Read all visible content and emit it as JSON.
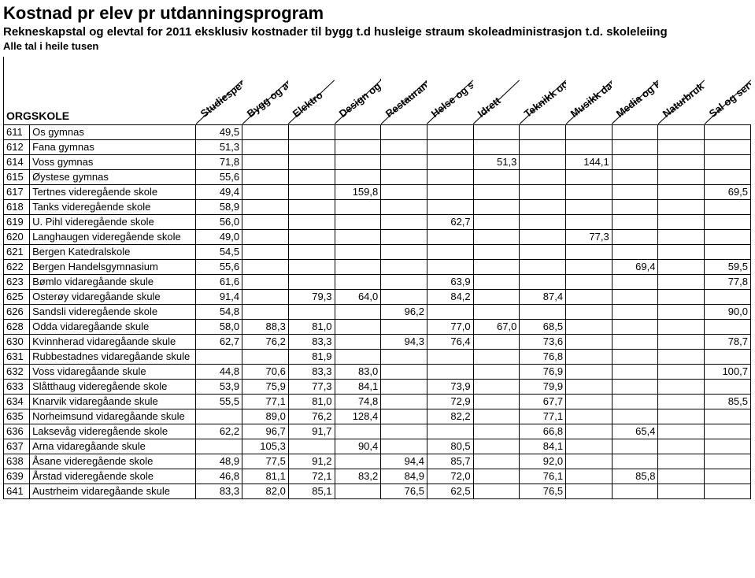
{
  "title": {
    "main": "Kostnad pr elev pr utdanningsprogram",
    "sub": "Rekneskapstal og elevtal for 2011 eksklusiv kostnader til bygg t.d husleige straum  skoleadministrasjon t.d. skoleleiing",
    "note": "Alle tal i heile tusen"
  },
  "columns": {
    "code_label": "ORG",
    "name_label": "SKOLE",
    "headers": [
      "Studiespes.",
      "Bygg og anlegg",
      "Elektro",
      "Design og handverk",
      "Restaurant og matfag",
      "Helse og sosial",
      "Idrett",
      "Teknikk og ind. prod.",
      "Musikk dans og drama",
      "Media og komm.",
      "Naturbruk",
      "Sal og service"
    ]
  },
  "rows": [
    {
      "code": "611",
      "name": "Os gymnas",
      "v": [
        "49,5",
        "",
        "",
        "",
        "",
        "",
        "",
        "",
        "",
        "",
        "",
        ""
      ]
    },
    {
      "code": "612",
      "name": "Fana gymnas",
      "v": [
        "51,3",
        "",
        "",
        "",
        "",
        "",
        "",
        "",
        "",
        "",
        "",
        ""
      ]
    },
    {
      "code": "614",
      "name": "Voss gymnas",
      "v": [
        "71,8",
        "",
        "",
        "",
        "",
        "",
        "51,3",
        "",
        "144,1",
        "",
        "",
        ""
      ]
    },
    {
      "code": "615",
      "name": "Øystese gymnas",
      "v": [
        "55,6",
        "",
        "",
        "",
        "",
        "",
        "",
        "",
        "",
        "",
        "",
        ""
      ]
    },
    {
      "code": "617",
      "name": "Tertnes videregående skole",
      "v": [
        "49,4",
        "",
        "",
        "159,8",
        "",
        "",
        "",
        "",
        "",
        "",
        "",
        "69,5"
      ]
    },
    {
      "code": "618",
      "name": "Tanks videregående skole",
      "v": [
        "58,9",
        "",
        "",
        "",
        "",
        "",
        "",
        "",
        "",
        "",
        "",
        ""
      ]
    },
    {
      "code": "619",
      "name": "U. Pihl videregående skole",
      "v": [
        "56,0",
        "",
        "",
        "",
        "",
        "62,7",
        "",
        "",
        "",
        "",
        "",
        ""
      ]
    },
    {
      "code": "620",
      "name": "Langhaugen videregående skole",
      "v": [
        "49,0",
        "",
        "",
        "",
        "",
        "",
        "",
        "",
        "77,3",
        "",
        "",
        ""
      ]
    },
    {
      "code": "621",
      "name": "Bergen Katedralskole",
      "v": [
        "54,5",
        "",
        "",
        "",
        "",
        "",
        "",
        "",
        "",
        "",
        "",
        ""
      ]
    },
    {
      "code": "622",
      "name": "Bergen Handelsgymnasium",
      "v": [
        "55,6",
        "",
        "",
        "",
        "",
        "",
        "",
        "",
        "",
        "69,4",
        "",
        "59,5"
      ]
    },
    {
      "code": "623",
      "name": "Bømlo vidaregåande skule",
      "v": [
        "61,6",
        "",
        "",
        "",
        "",
        "63,9",
        "",
        "",
        "",
        "",
        "",
        "77,8"
      ]
    },
    {
      "code": "625",
      "name": "Osterøy vidaregåande skule",
      "v": [
        "91,4",
        "",
        "79,3",
        "64,0",
        "",
        "84,2",
        "",
        "87,4",
        "",
        "",
        "",
        ""
      ]
    },
    {
      "code": "626",
      "name": "Sandsli videregående skole",
      "v": [
        "54,8",
        "",
        "",
        "",
        "96,2",
        "",
        "",
        "",
        "",
        "",
        "",
        "90,0"
      ]
    },
    {
      "code": "628",
      "name": "Odda vidaregåande skule",
      "v": [
        "58,0",
        "88,3",
        "81,0",
        "",
        "",
        "77,0",
        "67,0",
        "68,5",
        "",
        "",
        "",
        ""
      ]
    },
    {
      "code": "630",
      "name": "Kvinnherad vidaregåande skule",
      "v": [
        "62,7",
        "76,2",
        "83,3",
        "",
        "94,3",
        "76,4",
        "",
        "73,6",
        "",
        "",
        "",
        "78,7"
      ]
    },
    {
      "code": "631",
      "name": "Rubbestadnes vidaregåande skule",
      "v": [
        "",
        "",
        "81,9",
        "",
        "",
        "",
        "",
        "76,8",
        "",
        "",
        "",
        ""
      ]
    },
    {
      "code": "632",
      "name": "Voss vidaregåande skule",
      "v": [
        "44,8",
        "70,6",
        "83,3",
        "83,0",
        "",
        "",
        "",
        "76,9",
        "",
        "",
        "",
        "100,7"
      ]
    },
    {
      "code": "633",
      "name": "Slåtthaug videregående skole",
      "v": [
        "53,9",
        "75,9",
        "77,3",
        "84,1",
        "",
        "73,9",
        "",
        "79,9",
        "",
        "",
        "",
        ""
      ]
    },
    {
      "code": "634",
      "name": "Knarvik vidaregåande skule",
      "v": [
        "55,5",
        "77,1",
        "81,0",
        "74,8",
        "",
        "72,9",
        "",
        "67,7",
        "",
        "",
        "",
        "85,5"
      ]
    },
    {
      "code": "635",
      "name": "Norheimsund vidaregåande skule",
      "v": [
        "",
        "89,0",
        "76,2",
        "128,4",
        "",
        "82,2",
        "",
        "77,1",
        "",
        "",
        "",
        ""
      ]
    },
    {
      "code": "636",
      "name": "Laksevåg videregående skole",
      "v": [
        "62,2",
        "96,7",
        "91,7",
        "",
        "",
        "",
        "",
        "66,8",
        "",
        "65,4",
        "",
        ""
      ]
    },
    {
      "code": "637",
      "name": "Arna vidaregåande skule",
      "v": [
        "",
        "105,3",
        "",
        "90,4",
        "",
        "80,5",
        "",
        "84,1",
        "",
        "",
        "",
        ""
      ]
    },
    {
      "code": "638",
      "name": "Åsane videregående skole",
      "v": [
        "48,9",
        "77,5",
        "91,2",
        "",
        "94,4",
        "85,7",
        "",
        "92,0",
        "",
        "",
        "",
        ""
      ]
    },
    {
      "code": "639",
      "name": "Årstad videregående skole",
      "v": [
        "46,8",
        "81,1",
        "72,1",
        "83,2",
        "84,9",
        "72,0",
        "",
        "76,1",
        "",
        "85,8",
        "",
        ""
      ]
    },
    {
      "code": "641",
      "name": "Austrheim vidaregåande skule",
      "v": [
        "83,3",
        "82,0",
        "85,1",
        "",
        "76,5",
        "62,5",
        "",
        "76,5",
        "",
        "",
        "",
        ""
      ]
    }
  ],
  "colors": {
    "text": "#000000",
    "background": "#ffffff",
    "border": "#000000"
  }
}
